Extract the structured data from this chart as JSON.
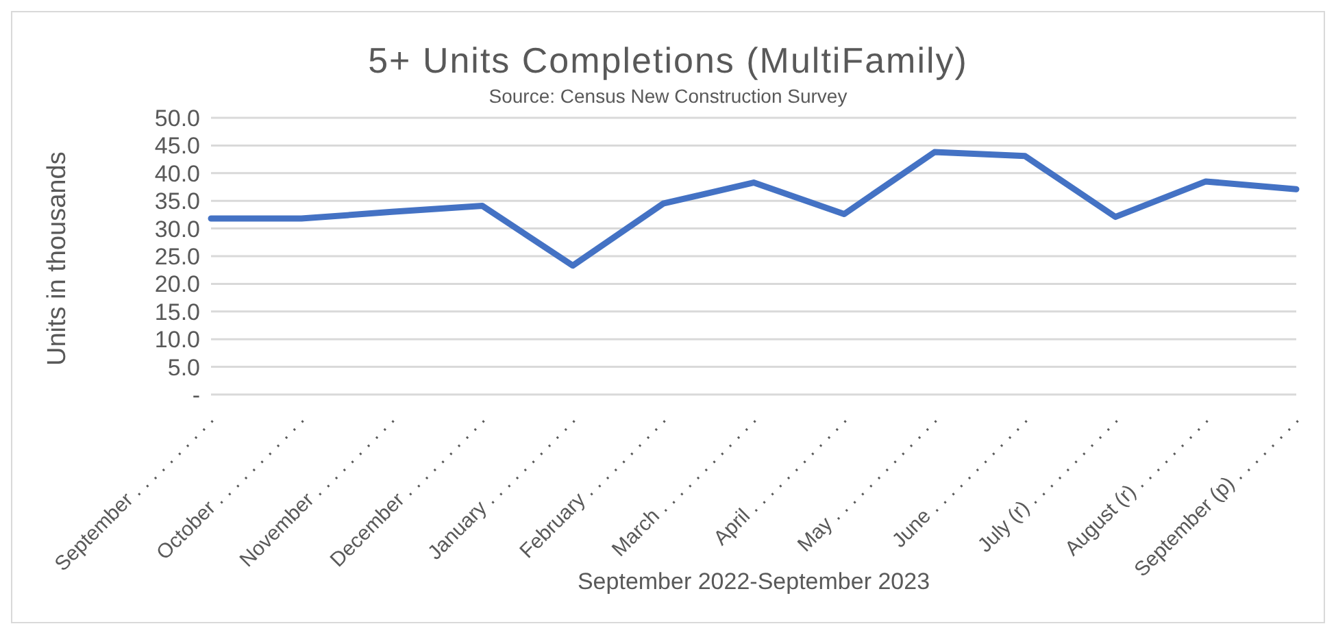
{
  "chart_data": {
    "type": "line",
    "title": "5+ Units Completions (MultiFamily)",
    "subtitle": "Source: Census New Construction Survey",
    "xlabel": "September 2022-September 2023",
    "ylabel": "Units in thousands",
    "categories": [
      "September . . . . . . . . . .",
      "October . . . . . . . . . . .",
      "November . . . . . . . . . .",
      "December . . . . . . . . . .",
      "January . . . . . . . . . . .",
      "February . . . . . . . . . .",
      "March . . . . . . . . . . . .",
      "April . . . . . . . . . . . .",
      "May . . . . . . . . . . . . .",
      "June . . . . . . . . . . . .",
      "July (r) . . . . . . . . . . .",
      "August (r) . . . . . . . . .",
      "September (p) . . . . . . . ."
    ],
    "series": [
      {
        "color": "#4472c4",
        "values": [
          31.8,
          31.8,
          33.0,
          34.1,
          23.3,
          34.5,
          38.3,
          32.6,
          43.8,
          43.1,
          32.1,
          38.5,
          37.1
        ]
      }
    ],
    "ylim": [
      0,
      50
    ],
    "yticks": [
      {
        "value": 0,
        "label": "-"
      },
      {
        "value": 5,
        "label": "5.0"
      },
      {
        "value": 10,
        "label": "10.0"
      },
      {
        "value": 15,
        "label": "15.0"
      },
      {
        "value": 20,
        "label": "20.0"
      },
      {
        "value": 25,
        "label": "25.0"
      },
      {
        "value": 30,
        "label": "30.0"
      },
      {
        "value": 35,
        "label": "35.0"
      },
      {
        "value": 40,
        "label": "40.0"
      },
      {
        "value": 45,
        "label": "45.0"
      },
      {
        "value": 50,
        "label": "50.0"
      }
    ],
    "grid": "y",
    "legend": false,
    "marker": "none",
    "line_style": "solid"
  }
}
